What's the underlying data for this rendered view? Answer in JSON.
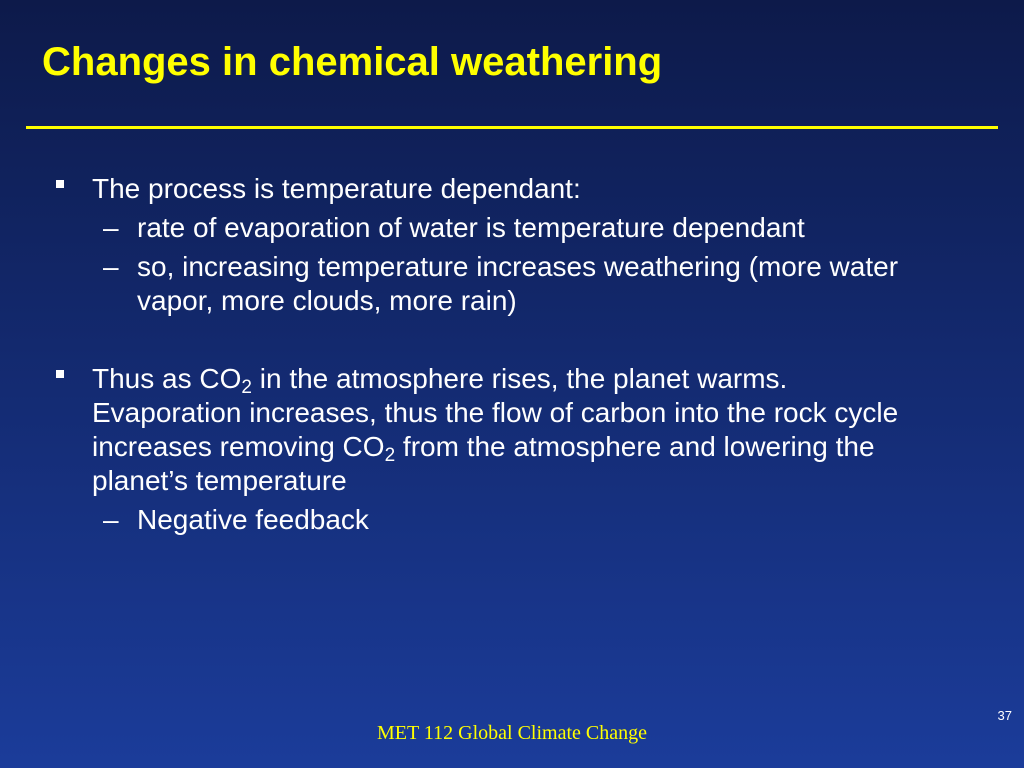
{
  "slide": {
    "title": "Changes in chemical weathering",
    "bullets": [
      {
        "text": "The process is temperature dependant:",
        "subs": [
          "rate of evaporation of water is temperature dependant",
          "so, increasing temperature increases weathering (more water vapor, more clouds, more rain)"
        ]
      },
      {
        "parts": [
          "Thus as CO",
          "2",
          " in the atmosphere rises, the planet warms. Evaporation increases, thus the flow of carbon into the rock cycle increases removing CO",
          "2",
          " from the atmosphere and lowering the planet’s temperature"
        ],
        "subs": [
          "Negative feedback"
        ]
      }
    ],
    "dash": "–",
    "footer": "MET 112 Global Climate Change",
    "page_number": "37",
    "colors": {
      "title": "#ffff00",
      "rule": "#ffff00",
      "footer": "#ffff00",
      "text": "#ffffff",
      "background_top": "#0d1a4a",
      "background_bottom": "#1b3c9a"
    }
  }
}
